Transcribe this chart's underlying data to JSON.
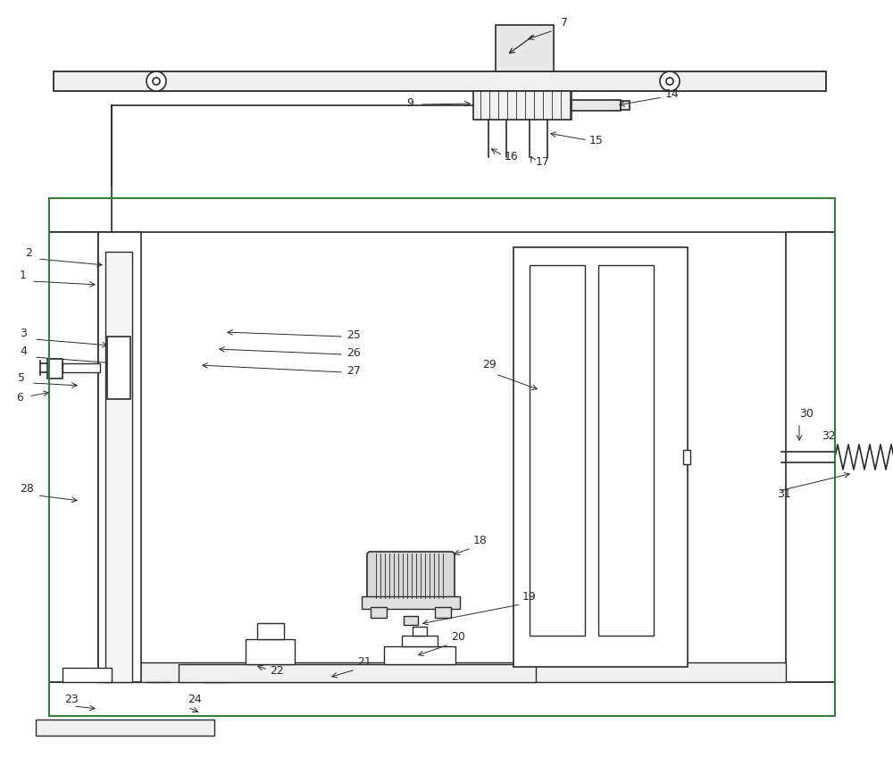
{
  "bg_color": "#ffffff",
  "lc": "#2a2a2a",
  "gc": "#3a7a3a",
  "hc": "#999999",
  "fig_width": 10.0,
  "fig_height": 8.67,
  "dpi": 100
}
